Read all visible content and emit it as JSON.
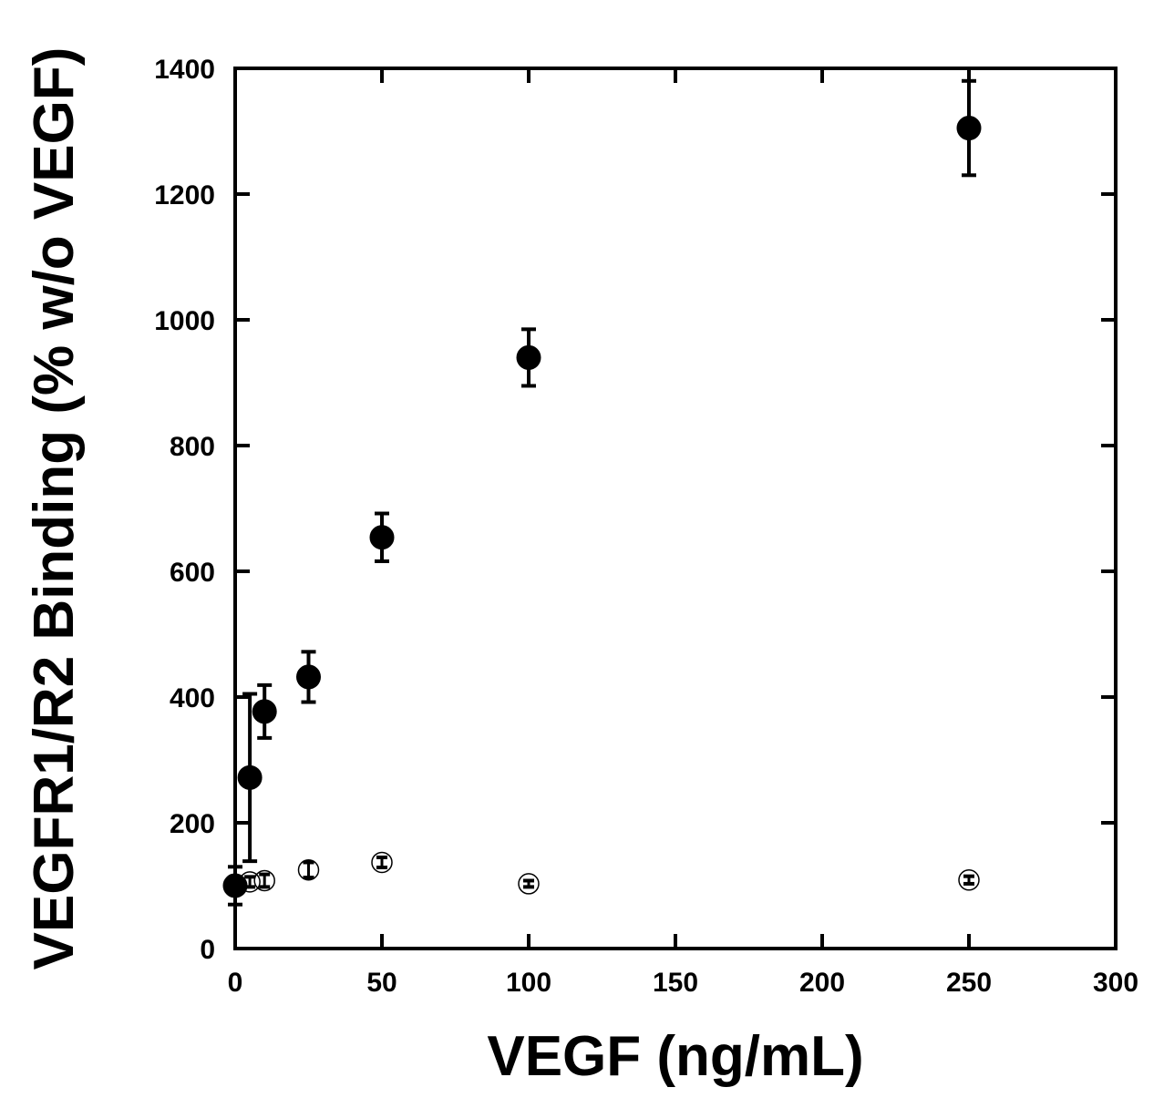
{
  "chart_data": {
    "type": "scatter",
    "title": "",
    "xlabel": "VEGF (ng/mL)",
    "ylabel": "VEGFR1/R2 Binding (% w/o VEGF)",
    "xlim": [
      0,
      300
    ],
    "ylim": [
      0,
      1400
    ],
    "xticks": [
      0,
      50,
      100,
      150,
      200,
      250,
      300
    ],
    "yticks": [
      0,
      200,
      400,
      600,
      800,
      1000,
      1200,
      1400
    ],
    "xtick_labels": [
      "0",
      "50",
      "100",
      "150",
      "200",
      "250",
      "300"
    ],
    "ytick_labels": [
      "0",
      "200",
      "400",
      "600",
      "800",
      "1000",
      "1200",
      "1400"
    ],
    "grid": false,
    "legend": "none",
    "series": [
      {
        "name": "filled",
        "marker": "filled-circle",
        "color": "#000000",
        "points": [
          {
            "x": 0,
            "y": 100,
            "err": 30
          },
          {
            "x": 5,
            "y": 272,
            "err": 133
          },
          {
            "x": 10,
            "y": 377,
            "err": 42
          },
          {
            "x": 25,
            "y": 432,
            "err": 40
          },
          {
            "x": 50,
            "y": 654,
            "err": 38
          },
          {
            "x": 100,
            "y": 940,
            "err": 45
          },
          {
            "x": 250,
            "y": 1305,
            "err": 75
          }
        ]
      },
      {
        "name": "open",
        "marker": "open-circle",
        "color": "#000000",
        "points": [
          {
            "x": 0,
            "y": 100,
            "err": 6
          },
          {
            "x": 5,
            "y": 106,
            "err": 8
          },
          {
            "x": 10,
            "y": 108,
            "err": 10
          },
          {
            "x": 25,
            "y": 125,
            "err": 12
          },
          {
            "x": 50,
            "y": 137,
            "err": 8
          },
          {
            "x": 100,
            "y": 103,
            "err": 5
          },
          {
            "x": 250,
            "y": 109,
            "err": 6
          }
        ]
      }
    ]
  }
}
